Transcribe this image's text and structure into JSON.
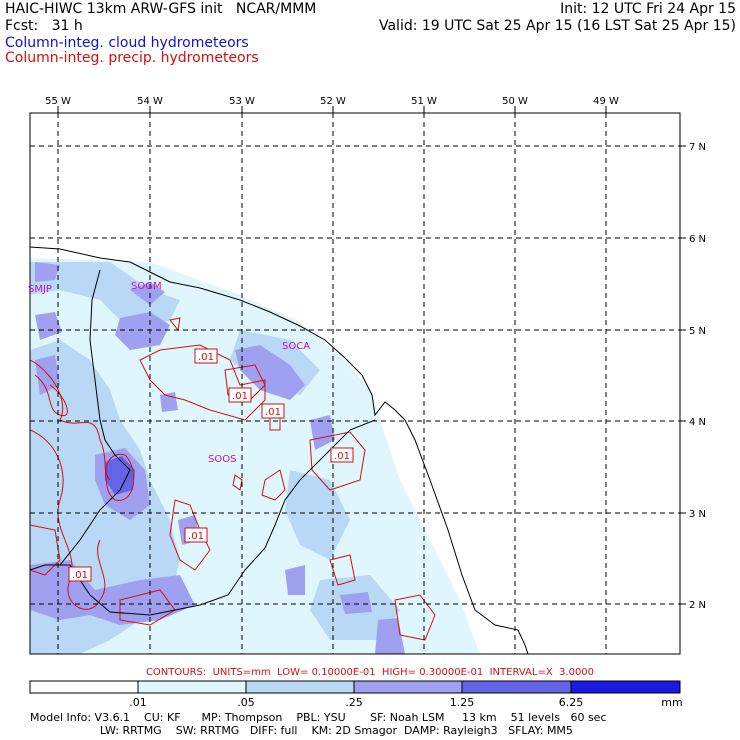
{
  "header": {
    "title_left": "HAIC-HIWC 13km ARW-GFS init   NCAR/MMM",
    "init": "Init: 12 UTC Fri 24 Apr 15",
    "fcst": "Fcst:   31 h",
    "valid": "Valid: 19 UTC Sat 25 Apr 15 (16 LST Sat 25 Apr 15)",
    "field_cloud": "Column-integ. cloud hydrometeors",
    "field_precip": "Column-integ. precip. hydrometeors"
  },
  "colors": {
    "cloud_title": "#1010d0",
    "precip_title": "#d01010",
    "fill_level1": "#dff7fc",
    "fill_level2": "#b8d8f6",
    "fill_level3": "#a0a0f0",
    "fill_level4": "#6464e8",
    "fill_level5": "#1a1ae0",
    "contour": "#d01010",
    "site_label": "#c010c0"
  },
  "map": {
    "lon_labels": [
      "55 W",
      "54 W",
      "53 W",
      "52 W",
      "51 W",
      "50 W",
      "49 W"
    ],
    "lat_labels": [
      "7 N",
      "6 N",
      "5 N",
      "4 N",
      "3 N",
      "2 N"
    ],
    "sites": [
      "SMJP",
      "SOGM",
      "SOCA",
      "SOOS"
    ],
    "contour_labels": [
      ".01",
      ".01",
      ".01",
      ".01",
      ".01",
      ".01"
    ]
  },
  "contours_info": "CONTOURS:  UNITS=mm  LOW= 0.10000E-01  HIGH= 0.30000E-01  INTERVAL=X  3.0000",
  "legend": {
    "ticks": [
      ".01",
      ".05",
      ".25",
      "1.25",
      "6.25"
    ],
    "units": "mm"
  },
  "model_info": {
    "line1": "Model Info: V3.6.1    CU: KF      MP: Thompson    PBL: YSU       SF: Noah LSM     13 km    51 levels   60 sec",
    "line2": "                    LW: RRTMG    SW: RRTMG   DIFF: full    KM: 2D Smagor  DAMP: Rayleigh3   SFLAY: MM5"
  }
}
